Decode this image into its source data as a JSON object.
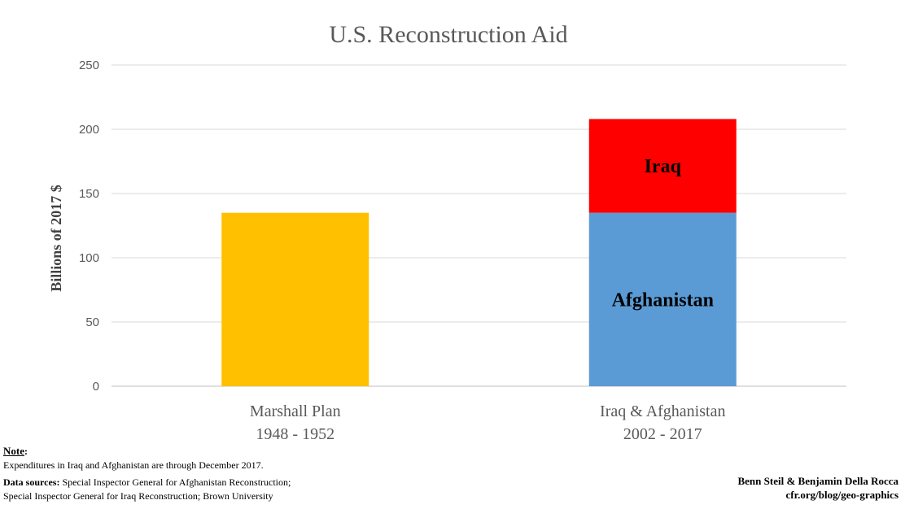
{
  "chart_data": {
    "type": "bar",
    "title": "U.S. Reconstruction Aid",
    "ylabel": "Billions of 2017 $",
    "xlabel": "",
    "ylim": [
      0,
      250
    ],
    "yticks": [
      0,
      50,
      100,
      150,
      200,
      250
    ],
    "grid": true,
    "categories": [
      {
        "line1": "Marshall Plan",
        "line2": "1948 - 1952"
      },
      {
        "line1": "Iraq & Afghanistan",
        "line2": "2002 - 2017"
      }
    ],
    "bars": [
      {
        "category": "Marshall Plan",
        "segments": [
          {
            "name": "",
            "value": 135,
            "color": "#FFC000"
          }
        ]
      },
      {
        "category": "Iraq & Afghanistan",
        "segments": [
          {
            "name": "Afghanistan",
            "value": 135,
            "color": "#5B9BD5"
          },
          {
            "name": "Iraq",
            "value": 73,
            "color": "#FF0000"
          }
        ]
      }
    ]
  },
  "footer": {
    "note_title": "Note",
    "note_text": "Expenditures in Iraq and Afghanistan are through December 2017.",
    "sources_label": "Data sources:",
    "sources_line1": " Special Inspector General for Afghanistan Reconstruction;",
    "sources_line2": "Special Inspector General for Iraq Reconstruction; Brown University",
    "credit_authors": "Benn Steil & Benjamin Della Rocca",
    "credit_url": "cfr.org/blog/geo-graphics"
  }
}
